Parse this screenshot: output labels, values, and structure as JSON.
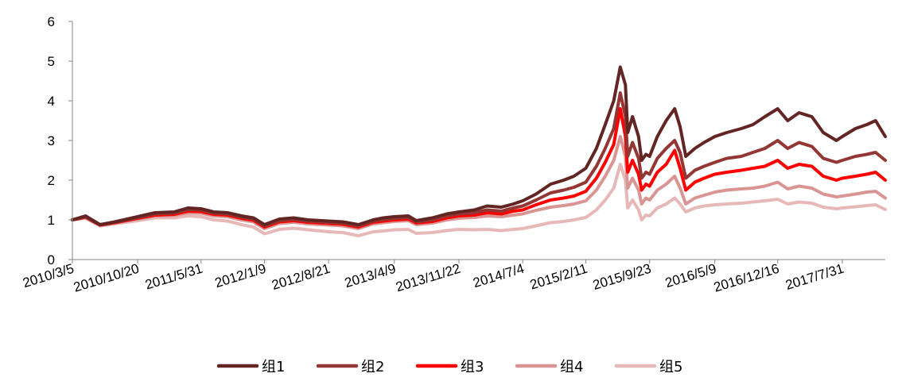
{
  "chart_data": {
    "type": "line",
    "title": "",
    "xlabel": "",
    "ylabel": "",
    "ylim": [
      0,
      6
    ],
    "yticks": [
      0,
      1,
      2,
      3,
      4,
      5,
      6
    ],
    "xlim": [
      "2010-03-05",
      "2017-12-29"
    ],
    "x_ticks": [
      {
        "date": "2010-03-05",
        "label": "2010/3/5"
      },
      {
        "date": "2010-10-20",
        "label": "2010/10/20"
      },
      {
        "date": "2011-05-31",
        "label": "2011/5/31"
      },
      {
        "date": "2012-01-09",
        "label": "2012/1/9"
      },
      {
        "date": "2012-08-21",
        "label": "2012/8/21"
      },
      {
        "date": "2013-04-09",
        "label": "2013/4/9"
      },
      {
        "date": "2013-11-22",
        "label": "2013/11/22"
      },
      {
        "date": "2014-07-04",
        "label": "2014/7/4"
      },
      {
        "date": "2015-02-11",
        "label": "2015/2/11"
      },
      {
        "date": "2015-09-23",
        "label": "2015/9/23"
      },
      {
        "date": "2016-05-09",
        "label": "2016/5/9"
      },
      {
        "date": "2016-12-16",
        "label": "2016/12/16"
      },
      {
        "date": "2017-07-31",
        "label": "2017/7/31"
      }
    ],
    "grid": false,
    "legend_position": "bottom",
    "x": [
      "2010-03-05",
      "2010-04-20",
      "2010-06-10",
      "2010-08-01",
      "2010-10-20",
      "2010-12-20",
      "2011-02-25",
      "2011-04-15",
      "2011-05-31",
      "2011-07-15",
      "2011-09-01",
      "2011-10-20",
      "2011-12-01",
      "2012-01-09",
      "2012-03-01",
      "2012-04-20",
      "2012-06-10",
      "2012-08-21",
      "2012-10-10",
      "2012-12-04",
      "2013-01-25",
      "2013-03-01",
      "2013-04-09",
      "2013-05-28",
      "2013-06-25",
      "2013-08-20",
      "2013-10-10",
      "2013-11-22",
      "2014-01-15",
      "2014-03-01",
      "2014-04-20",
      "2014-06-01",
      "2014-07-04",
      "2014-08-20",
      "2014-10-10",
      "2014-11-25",
      "2014-12-31",
      "2015-02-11",
      "2015-03-20",
      "2015-04-20",
      "2015-05-20",
      "2015-06-12",
      "2015-06-30",
      "2015-07-08",
      "2015-07-25",
      "2015-08-15",
      "2015-08-26",
      "2015-09-10",
      "2015-09-23",
      "2015-10-20",
      "2015-11-20",
      "2015-12-20",
      "2016-01-08",
      "2016-01-28",
      "2016-02-29",
      "2016-04-01",
      "2016-05-09",
      "2016-06-20",
      "2016-08-10",
      "2016-09-20",
      "2016-11-01",
      "2016-12-16",
      "2017-01-20",
      "2017-03-01",
      "2017-04-15",
      "2017-05-25",
      "2017-07-10",
      "2017-07-31",
      "2017-09-15",
      "2017-10-25",
      "2017-11-25",
      "2017-12-29"
    ],
    "series": [
      {
        "name": "组1",
        "color": "#632523",
        "values": [
          1.0,
          1.1,
          0.88,
          0.95,
          1.08,
          1.18,
          1.2,
          1.3,
          1.28,
          1.2,
          1.18,
          1.1,
          1.05,
          0.88,
          1.02,
          1.05,
          1.0,
          0.97,
          0.95,
          0.88,
          1.0,
          1.05,
          1.08,
          1.1,
          0.98,
          1.05,
          1.15,
          1.2,
          1.25,
          1.35,
          1.32,
          1.4,
          1.48,
          1.65,
          1.9,
          2.0,
          2.1,
          2.3,
          2.8,
          3.4,
          4.0,
          4.85,
          4.4,
          3.2,
          3.6,
          3.1,
          2.5,
          2.65,
          2.6,
          3.1,
          3.5,
          3.8,
          3.35,
          2.6,
          2.8,
          2.95,
          3.1,
          3.2,
          3.3,
          3.4,
          3.6,
          3.8,
          3.5,
          3.7,
          3.6,
          3.2,
          3.0,
          3.1,
          3.3,
          3.4,
          3.5,
          3.1
        ]
      },
      {
        "name": "组2",
        "color": "#943634",
        "values": [
          1.0,
          1.08,
          0.88,
          0.94,
          1.06,
          1.15,
          1.17,
          1.26,
          1.25,
          1.17,
          1.15,
          1.07,
          1.02,
          0.85,
          0.98,
          1.01,
          0.97,
          0.94,
          0.92,
          0.85,
          0.97,
          1.01,
          1.04,
          1.06,
          0.95,
          1.0,
          1.1,
          1.15,
          1.18,
          1.25,
          1.22,
          1.3,
          1.35,
          1.5,
          1.68,
          1.75,
          1.82,
          1.95,
          2.35,
          2.8,
          3.3,
          4.2,
          3.6,
          2.6,
          2.95,
          2.55,
          2.05,
          2.2,
          2.15,
          2.55,
          2.8,
          3.0,
          2.7,
          2.05,
          2.25,
          2.35,
          2.45,
          2.55,
          2.6,
          2.7,
          2.8,
          3.0,
          2.8,
          2.95,
          2.85,
          2.55,
          2.45,
          2.5,
          2.6,
          2.65,
          2.7,
          2.5
        ]
      },
      {
        "name": "组3",
        "color": "#ff0000",
        "values": [
          1.0,
          1.07,
          0.87,
          0.93,
          1.04,
          1.12,
          1.14,
          1.22,
          1.21,
          1.14,
          1.12,
          1.04,
          0.99,
          0.82,
          0.95,
          0.98,
          0.94,
          0.91,
          0.89,
          0.82,
          0.94,
          0.97,
          1.0,
          1.02,
          0.92,
          0.96,
          1.05,
          1.1,
          1.12,
          1.18,
          1.15,
          1.22,
          1.25,
          1.38,
          1.5,
          1.55,
          1.6,
          1.72,
          2.05,
          2.45,
          2.9,
          3.8,
          3.1,
          2.2,
          2.5,
          2.15,
          1.75,
          1.9,
          1.85,
          2.2,
          2.4,
          2.75,
          2.3,
          1.75,
          1.95,
          2.05,
          2.15,
          2.2,
          2.25,
          2.3,
          2.35,
          2.5,
          2.3,
          2.4,
          2.35,
          2.1,
          2.0,
          2.05,
          2.1,
          2.15,
          2.2,
          2.0
        ]
      },
      {
        "name": "组4",
        "color": "#d99594",
        "values": [
          1.0,
          1.06,
          0.86,
          0.92,
          1.02,
          1.1,
          1.11,
          1.18,
          1.17,
          1.1,
          1.08,
          1.0,
          0.95,
          0.78,
          0.91,
          0.94,
          0.9,
          0.87,
          0.85,
          0.78,
          0.9,
          0.93,
          0.96,
          0.98,
          0.88,
          0.92,
          1.0,
          1.04,
          1.06,
          1.1,
          1.08,
          1.12,
          1.15,
          1.24,
          1.32,
          1.36,
          1.4,
          1.48,
          1.75,
          2.1,
          2.5,
          3.1,
          2.6,
          1.8,
          2.05,
          1.75,
          1.4,
          1.55,
          1.5,
          1.75,
          1.9,
          2.1,
          1.8,
          1.4,
          1.55,
          1.62,
          1.7,
          1.75,
          1.78,
          1.8,
          1.85,
          1.95,
          1.78,
          1.85,
          1.8,
          1.65,
          1.58,
          1.6,
          1.65,
          1.7,
          1.72,
          1.55
        ]
      },
      {
        "name": "组5",
        "color": "#e6b9b8",
        "values": [
          1.0,
          1.04,
          0.85,
          0.9,
          0.98,
          1.05,
          1.05,
          1.1,
          1.08,
          1.0,
          0.97,
          0.88,
          0.82,
          0.65,
          0.76,
          0.79,
          0.75,
          0.7,
          0.68,
          0.6,
          0.7,
          0.72,
          0.75,
          0.76,
          0.66,
          0.68,
          0.73,
          0.76,
          0.75,
          0.76,
          0.73,
          0.76,
          0.78,
          0.85,
          0.93,
          0.96,
          1.0,
          1.06,
          1.25,
          1.5,
          1.8,
          2.4,
          2.0,
          1.3,
          1.5,
          1.25,
          1.0,
          1.12,
          1.1,
          1.3,
          1.4,
          1.55,
          1.4,
          1.2,
          1.3,
          1.35,
          1.38,
          1.4,
          1.42,
          1.45,
          1.48,
          1.52,
          1.4,
          1.45,
          1.42,
          1.32,
          1.28,
          1.3,
          1.33,
          1.36,
          1.38,
          1.26
        ]
      }
    ]
  }
}
